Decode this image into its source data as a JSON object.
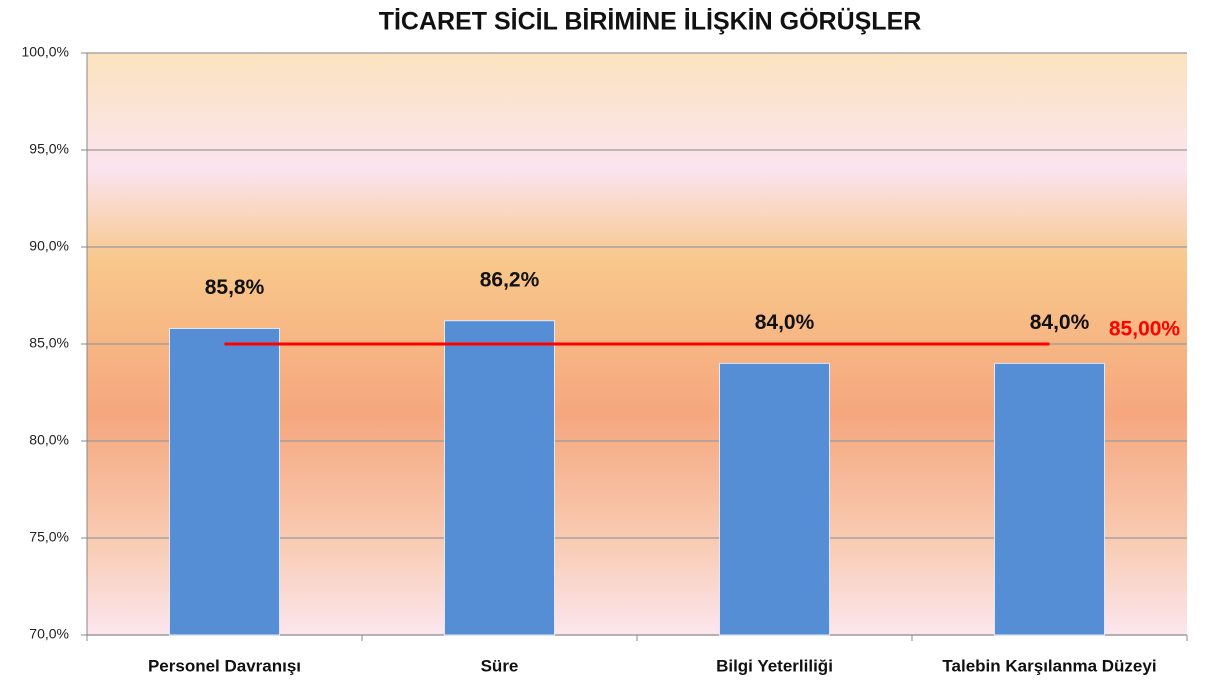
{
  "chart_data": {
    "type": "bar",
    "title": "TİCARET SİCİL BİRİMİNE İLİŞKİN GÖRÜŞLER",
    "categories": [
      "Personel Davranışı",
      "Süre",
      "Bilgi Yeterliliği",
      "Talebin Karşılanma Düzeyi"
    ],
    "values": [
      85.8,
      86.2,
      84.0,
      84.0
    ],
    "value_labels": [
      "85,8%",
      "86,2%",
      "84,0%",
      "84,0%"
    ],
    "color": "#558ed5",
    "ylim": [
      70,
      100
    ],
    "yticks": [
      {
        "value": 70,
        "label": "70,0%"
      },
      {
        "value": 75,
        "label": "75,0%"
      },
      {
        "value": 80,
        "label": "80,0%"
      },
      {
        "value": 85,
        "label": "85,0%"
      },
      {
        "value": 90,
        "label": "90,0%"
      },
      {
        "value": 95,
        "label": "95,0%"
      },
      {
        "value": 100,
        "label": "100,0%"
      }
    ],
    "grid": true,
    "reference_line": {
      "value": 85,
      "label": "85,00%",
      "color": "#ff0000"
    }
  }
}
